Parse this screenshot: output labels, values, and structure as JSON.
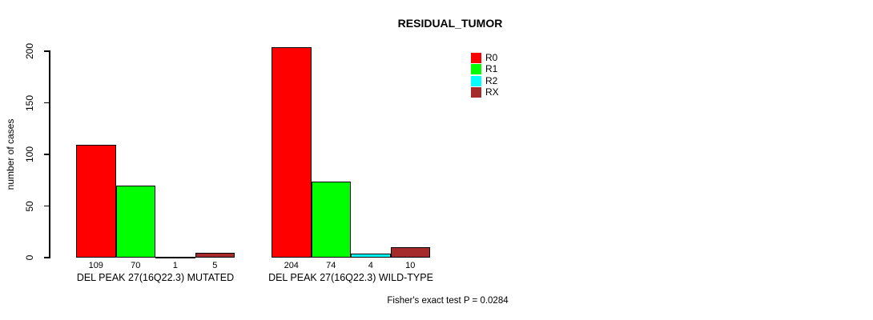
{
  "chart_data": {
    "type": "bar",
    "title": "RESIDUAL_TUMOR",
    "xlabel": "",
    "ylabel": "number of cases",
    "ylim": [
      0,
      200
    ],
    "yticks": [
      0,
      50,
      100,
      150,
      200
    ],
    "grid": false,
    "legend_position": "top-right",
    "grouped": true,
    "categories": [
      "DEL PEAK 27(16Q22.3) MUTATED",
      "DEL PEAK 27(16Q22.3) WILD-TYPE"
    ],
    "series": [
      {
        "name": "R0",
        "color": "#FF0000",
        "values": [
          109,
          204
        ]
      },
      {
        "name": "R1",
        "color": "#00FF00",
        "values": [
          70,
          74
        ]
      },
      {
        "name": "R2",
        "color": "#00FFFF",
        "values": [
          1,
          4
        ]
      },
      {
        "name": "RX",
        "color": "#A52A2A",
        "values": [
          5,
          10
        ]
      }
    ],
    "annotation": "Fisher's exact test P = 0.0284"
  }
}
